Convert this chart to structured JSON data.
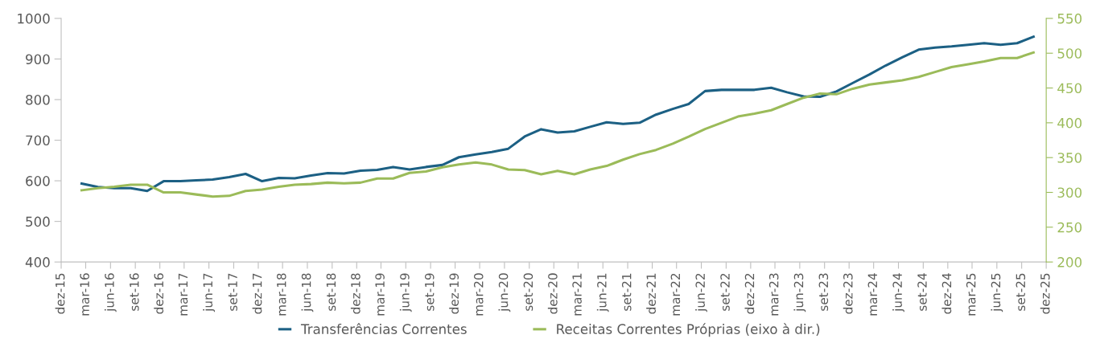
{
  "chart_data": {
    "type": "line",
    "x": [
      "2016-02-15",
      "2016-04-15",
      "2016-06-15",
      "2016-08-15",
      "2016-10-15",
      "2016-12-15",
      "2017-02-15",
      "2017-04-15",
      "2017-06-15",
      "2017-08-15",
      "2017-10-15",
      "2017-12-15",
      "2018-02-15",
      "2018-04-15",
      "2018-06-15",
      "2018-08-15",
      "2018-10-15",
      "2018-12-15",
      "2019-02-15",
      "2019-04-15",
      "2019-06-15",
      "2019-08-15",
      "2019-10-15",
      "2019-12-15",
      "2020-02-15",
      "2020-04-15",
      "2020-06-15",
      "2020-08-15",
      "2020-10-15",
      "2020-12-15",
      "2021-02-15",
      "2021-04-15",
      "2021-06-15",
      "2021-08-15",
      "2021-10-15",
      "2021-12-15",
      "2022-02-15",
      "2022-04-15",
      "2022-06-15",
      "2022-08-15",
      "2022-10-15",
      "2022-12-15",
      "2023-02-15",
      "2023-04-15",
      "2023-06-15",
      "2023-08-15",
      "2023-10-15",
      "2023-12-15",
      "2024-02-15",
      "2024-04-15",
      "2024-06-15",
      "2024-08-15",
      "2024-10-15",
      "2024-12-15",
      "2025-02-15",
      "2025-04-15",
      "2025-06-15",
      "2025-08-15",
      "2025-10-15"
    ],
    "series": [
      {
        "name": "Transferências Correntes",
        "color": "#1c6084",
        "values": [
          593,
          585,
          582,
          582,
          575,
          599,
          599,
          601,
          603,
          609,
          617,
          599,
          607,
          606,
          613,
          619,
          618,
          625,
          627,
          634,
          628,
          634,
          639,
          658,
          665,
          671,
          679,
          709,
          727,
          719,
          722,
          733,
          744,
          740,
          743,
          763,
          777,
          789,
          821,
          824,
          824,
          824,
          829,
          818,
          808,
          807,
          820,
          841,
          862,
          884,
          904,
          923,
          928,
          931,
          935,
          939,
          935,
          939,
          955
        ]
      },
      {
        "name": "Receitas Correntes Próprias (eixo à dir.)",
        "color": "#9bbb59",
        "axis": "y2",
        "values": [
          303,
          306,
          308,
          311,
          311,
          300,
          300,
          297,
          294,
          295,
          302,
          304,
          308,
          311,
          312,
          314,
          313,
          314,
          320,
          320,
          328,
          330,
          336,
          340,
          343,
          340,
          333,
          332,
          326,
          331,
          326,
          333,
          338,
          347,
          355,
          361,
          370,
          380,
          391,
          400,
          409,
          413,
          418,
          427,
          436,
          442,
          441,
          449,
          455,
          458,
          461,
          466,
          473,
          480,
          484,
          488,
          493,
          493,
          501
        ]
      }
    ],
    "xlim": [
      "2015-12-01",
      "2025-12-01"
    ],
    "xticks": [
      {
        "value": "2015-12-01",
        "label": "dez-15"
      },
      {
        "value": "2016-03-01",
        "label": "mar-16"
      },
      {
        "value": "2016-06-01",
        "label": "jun-16"
      },
      {
        "value": "2016-09-01",
        "label": "set-16"
      },
      {
        "value": "2016-12-01",
        "label": "dez-16"
      },
      {
        "value": "2017-03-01",
        "label": "mar-17"
      },
      {
        "value": "2017-06-01",
        "label": "jun-17"
      },
      {
        "value": "2017-09-01",
        "label": "set-17"
      },
      {
        "value": "2017-12-01",
        "label": "dez-17"
      },
      {
        "value": "2018-03-01",
        "label": "mar-18"
      },
      {
        "value": "2018-06-01",
        "label": "jun-18"
      },
      {
        "value": "2018-09-01",
        "label": "set-18"
      },
      {
        "value": "2018-12-01",
        "label": "dez-18"
      },
      {
        "value": "2019-03-01",
        "label": "mar-19"
      },
      {
        "value": "2019-06-01",
        "label": "jun-19"
      },
      {
        "value": "2019-09-01",
        "label": "set-19"
      },
      {
        "value": "2019-12-01",
        "label": "dez-19"
      },
      {
        "value": "2020-03-01",
        "label": "mar-20"
      },
      {
        "value": "2020-06-01",
        "label": "jun-20"
      },
      {
        "value": "2020-09-01",
        "label": "set-20"
      },
      {
        "value": "2020-12-01",
        "label": "dez-20"
      },
      {
        "value": "2021-03-01",
        "label": "mar-21"
      },
      {
        "value": "2021-06-01",
        "label": "jun-21"
      },
      {
        "value": "2021-09-01",
        "label": "set-21"
      },
      {
        "value": "2021-12-01",
        "label": "dez-21"
      },
      {
        "value": "2022-03-01",
        "label": "mar-22"
      },
      {
        "value": "2022-06-01",
        "label": "jun-22"
      },
      {
        "value": "2022-09-01",
        "label": "set-22"
      },
      {
        "value": "2022-12-01",
        "label": "dez-22"
      },
      {
        "value": "2023-03-01",
        "label": "mar-23"
      },
      {
        "value": "2023-06-01",
        "label": "jun-23"
      },
      {
        "value": "2023-09-01",
        "label": "set-23"
      },
      {
        "value": "2023-12-01",
        "label": "dez-23"
      },
      {
        "value": "2024-03-01",
        "label": "mar-24"
      },
      {
        "value": "2024-06-01",
        "label": "jun-24"
      },
      {
        "value": "2024-09-01",
        "label": "set-24"
      },
      {
        "value": "2024-12-01",
        "label": "dez-24"
      },
      {
        "value": "2025-03-01",
        "label": "mar-25"
      },
      {
        "value": "2025-06-01",
        "label": "jun-25"
      },
      {
        "value": "2025-09-01",
        "label": "set-25"
      },
      {
        "value": "2025-12-01",
        "label": "dez-25"
      }
    ],
    "ylim": [
      400,
      1000
    ],
    "yticks": [
      400,
      500,
      600,
      700,
      800,
      900,
      1000
    ],
    "y2lim": [
      200,
      550
    ],
    "y2ticks": [
      200,
      250,
      300,
      350,
      400,
      450,
      500,
      550
    ],
    "grid": false,
    "legend": "bottom",
    "marker": "none",
    "line_style": "solid"
  }
}
